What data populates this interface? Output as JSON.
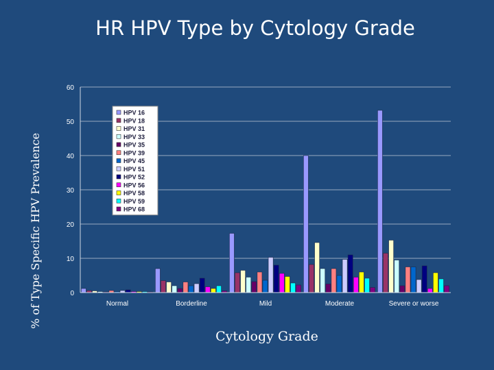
{
  "chart_data": {
    "type": "bar",
    "title": "HR HPV Type by Cytology Grade",
    "xlabel": "Cytology Grade",
    "ylabel": "% of Type Specific HPV Prevalence",
    "categories": [
      "Normal",
      "Borderline",
      "Mild",
      "Moderate",
      "Severe or worse"
    ],
    "ylim": [
      0,
      60
    ],
    "yticks": [
      0,
      10,
      20,
      30,
      40,
      50,
      60
    ],
    "grid": true,
    "legend_position": "top-left",
    "series": [
      {
        "name": "HPV 16",
        "color": "#9999ff",
        "values": [
          1.2,
          7.0,
          17.3,
          40.0,
          53.2
        ]
      },
      {
        "name": "HPV 18",
        "color": "#993366",
        "values": [
          0.6,
          3.5,
          5.8,
          8.2,
          11.5
        ]
      },
      {
        "name": "HPV 31",
        "color": "#ffffcc",
        "values": [
          0.5,
          3.1,
          6.5,
          14.6,
          15.3
        ]
      },
      {
        "name": "HPV 33",
        "color": "#ccffff",
        "values": [
          0.3,
          2.0,
          4.5,
          7.0,
          9.5
        ]
      },
      {
        "name": "HPV 35",
        "color": "#660066",
        "values": [
          0.2,
          1.2,
          3.2,
          2.5,
          2.0
        ]
      },
      {
        "name": "HPV 39",
        "color": "#ff8080",
        "values": [
          0.6,
          3.1,
          6.0,
          7.0,
          7.5
        ]
      },
      {
        "name": "HPV 45",
        "color": "#0066cc",
        "values": [
          0.3,
          2.0,
          3.6,
          5.0,
          7.5
        ]
      },
      {
        "name": "HPV 51",
        "color": "#ccccff",
        "values": [
          0.6,
          2.6,
          10.3,
          9.7,
          3.8
        ]
      },
      {
        "name": "HPV 52",
        "color": "#000080",
        "values": [
          0.8,
          4.2,
          8.0,
          11.0,
          7.8
        ]
      },
      {
        "name": "HPV 56",
        "color": "#ff00ff",
        "values": [
          0.3,
          1.7,
          5.6,
          4.5,
          1.2
        ]
      },
      {
        "name": "HPV 58",
        "color": "#ffff00",
        "values": [
          0.3,
          1.2,
          4.7,
          6.0,
          5.8
        ]
      },
      {
        "name": "HPV 59",
        "color": "#00ffff",
        "values": [
          0.3,
          2.0,
          2.8,
          4.2,
          4.0
        ]
      },
      {
        "name": "HPV 68",
        "color": "#800080",
        "values": [
          0.2,
          0.5,
          2.2,
          1.5,
          2.0
        ]
      }
    ]
  },
  "colors": {
    "background": "#1f4a7c",
    "plot_area": "#1f4a7c",
    "text": "#ffffff",
    "gridline": "#9aaac0",
    "legend_background": "#ffffff"
  }
}
